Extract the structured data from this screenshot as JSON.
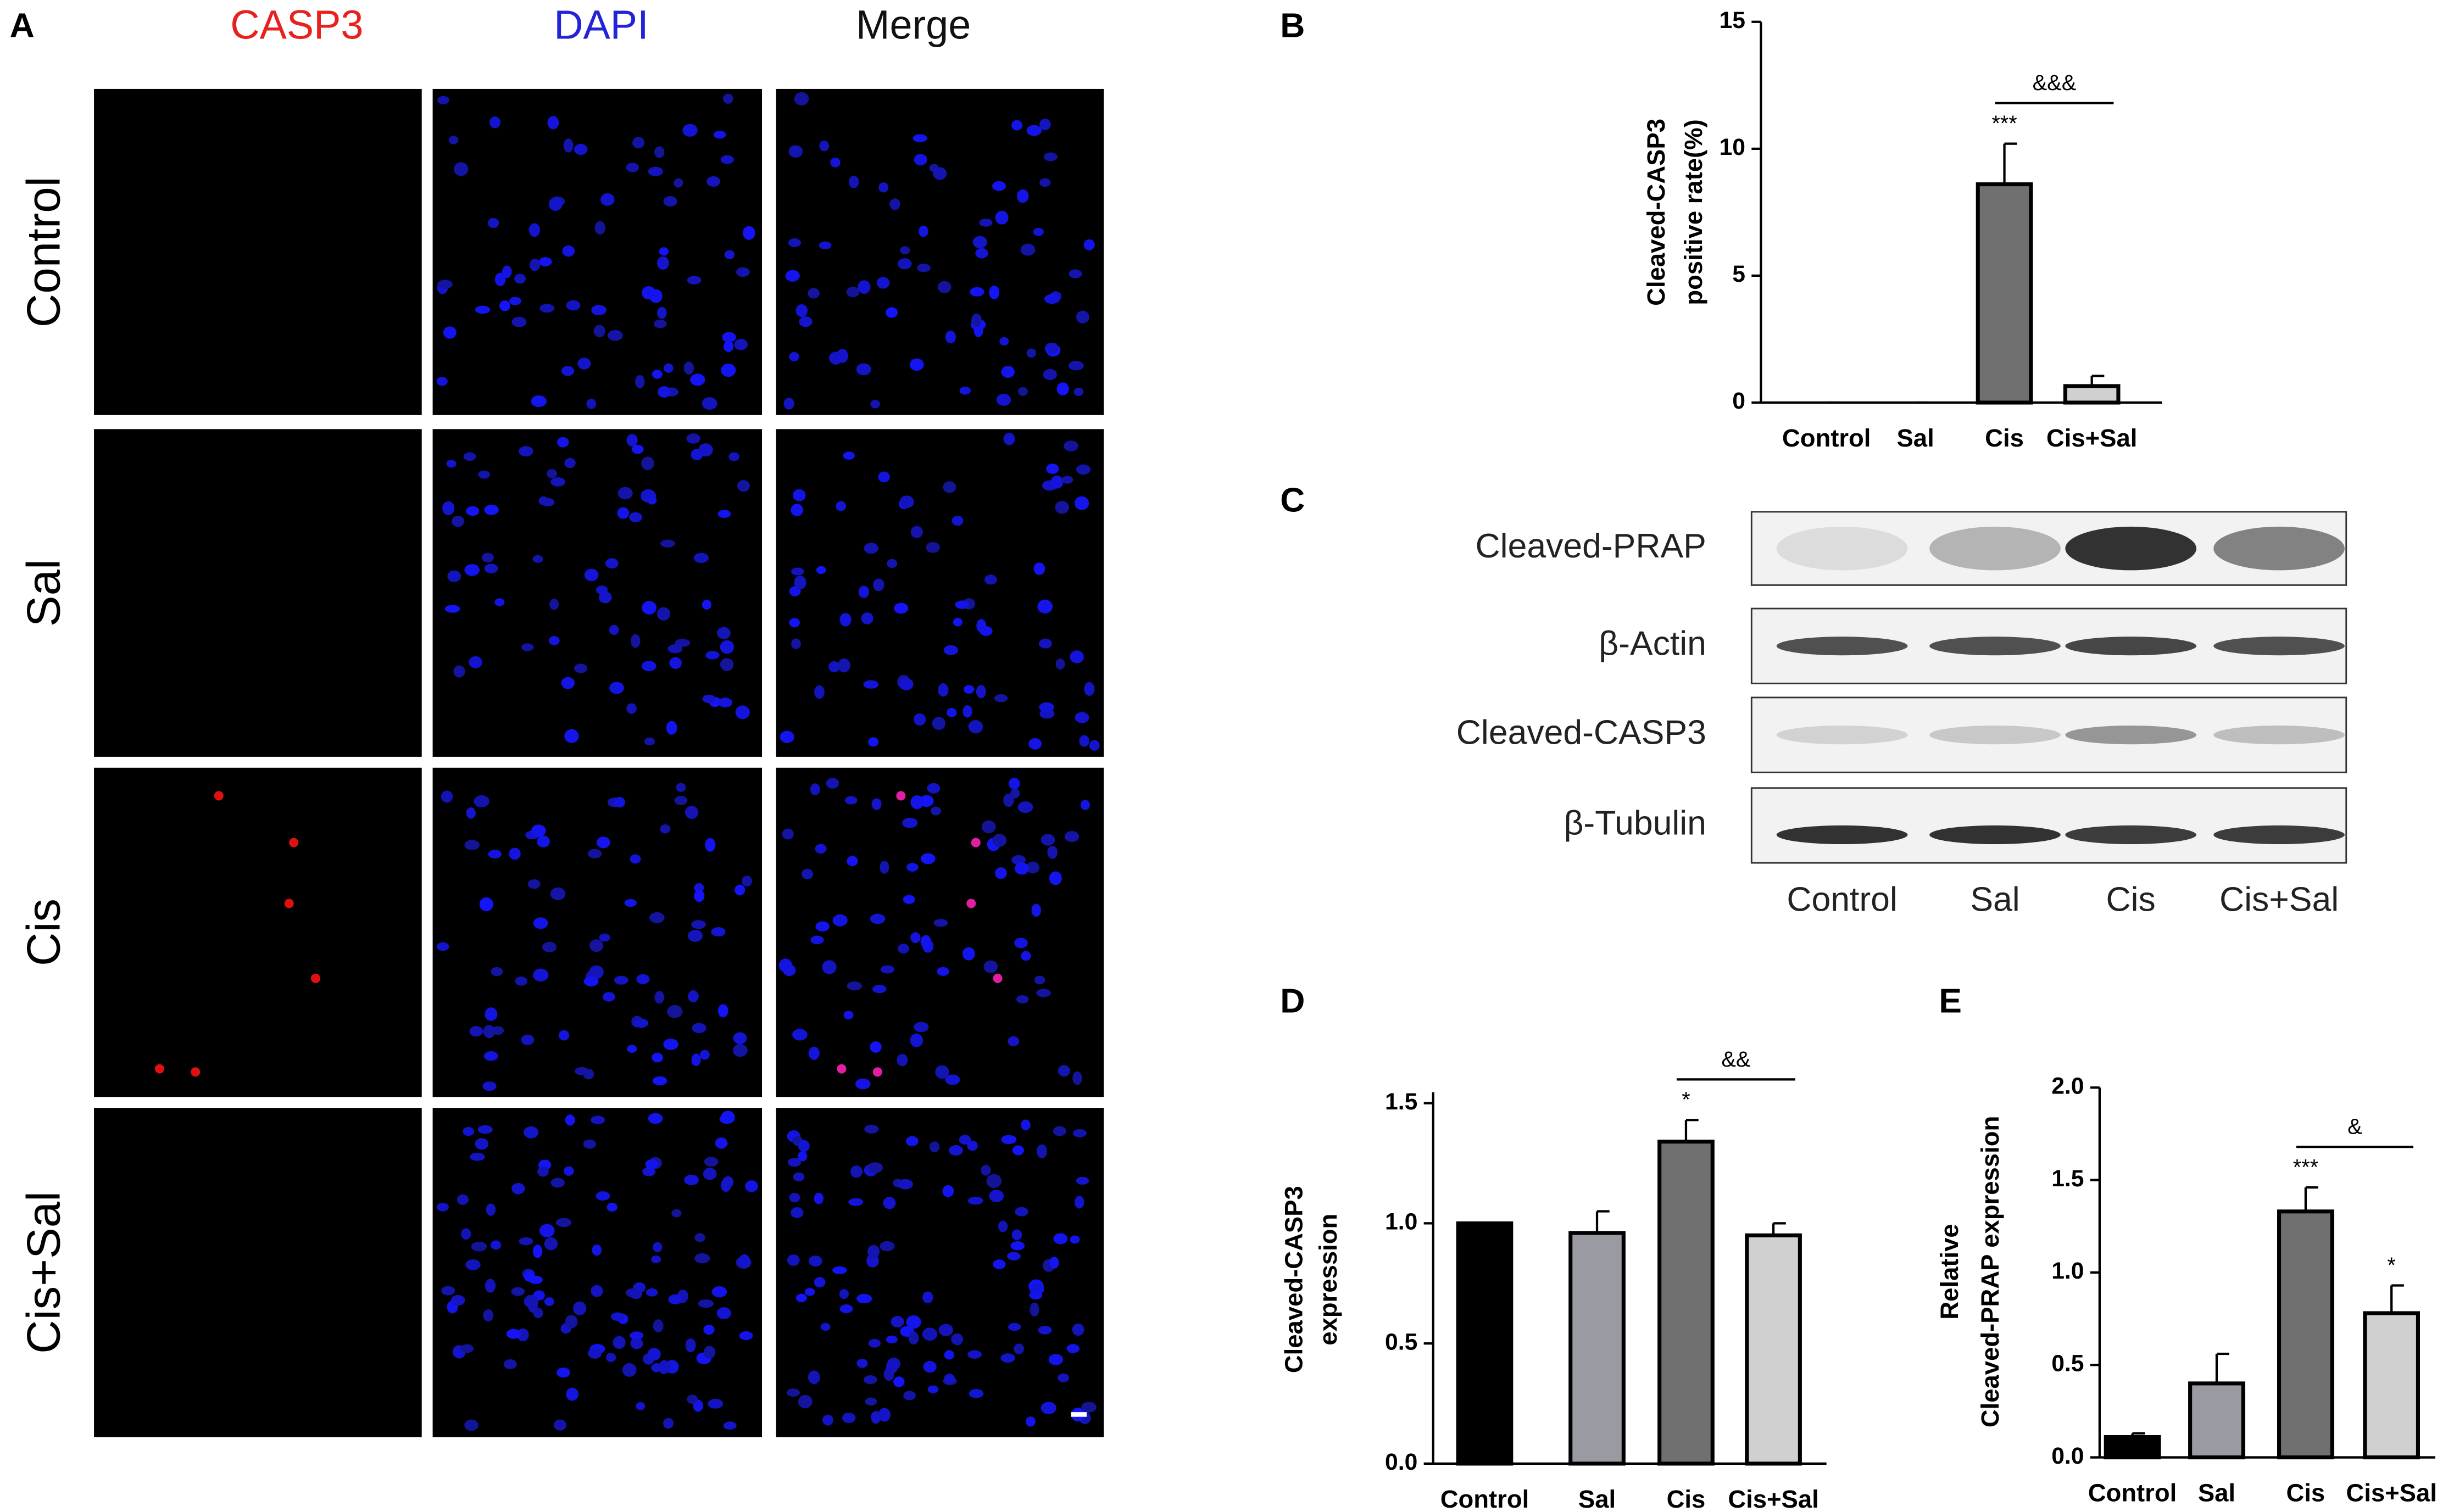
{
  "panels": {
    "A": {
      "label": "A",
      "columns": [
        "CASP3",
        "DAPI",
        "Merge"
      ],
      "rows": [
        "Control",
        "Sal",
        "Cis",
        "Cis+Sal"
      ]
    },
    "C": {
      "label": "C",
      "bands": [
        "Cleaved-PRAP",
        "β-Actin",
        "Cleaved-CASP3",
        "β-Tubulin"
      ],
      "lanes": [
        "Control",
        "Sal",
        "Cis",
        "Cis+Sal"
      ]
    }
  },
  "chart_data": [
    {
      "type": "bar",
      "panel": "B",
      "ylabel": [
        "Cleaved-CASP3",
        "positive rate(%)"
      ],
      "categories": [
        "Control",
        "Sal",
        "Cis",
        "Cis+Sal"
      ],
      "values": [
        0,
        0,
        8.6,
        0.65
      ],
      "errors": [
        0,
        0,
        1.6,
        0.4
      ],
      "colors": [
        "#000000",
        "#9a9aa2",
        "#707070",
        "#d0d0d0"
      ],
      "bar_labels": [
        null,
        null,
        "***",
        null
      ],
      "bracket_label": "&&&",
      "ylim": [
        0,
        15
      ],
      "yticks": [
        0,
        5,
        10,
        15
      ]
    },
    {
      "type": "bar",
      "panel": "D",
      "ylabel": [
        "Cleaved-CASP3",
        "expression"
      ],
      "categories": [
        "Control",
        "Sal",
        "Cis",
        "Cis+Sal"
      ],
      "values": [
        1.0,
        0.96,
        1.34,
        0.95
      ],
      "errors": [
        0,
        0.09,
        0.09,
        0.05
      ],
      "colors": [
        "#000000",
        "#9a9aa2",
        "#707070",
        "#d0d0d0"
      ],
      "bar_labels": [
        null,
        null,
        "*",
        null
      ],
      "bracket_label": "&&",
      "ylim": [
        0,
        1.5
      ],
      "yticks": [
        {
          "value": 0,
          "label": "0.0"
        },
        0.5,
        {
          "value": 1,
          "label": "1.0"
        },
        1.5
      ]
    },
    {
      "type": "bar",
      "panel": "E",
      "ylabel": [
        "Relative",
        "Cleaved-PRAP expression"
      ],
      "categories": [
        "Control",
        "Sal",
        "Cis",
        "Cis+Sal"
      ],
      "values": [
        0.11,
        0.4,
        1.33,
        0.78
      ],
      "errors": [
        0.02,
        0.16,
        0.13,
        0.15
      ],
      "colors": [
        "#000000",
        "#9a9aa2",
        "#707070",
        "#d0d0d0"
      ],
      "bar_labels": [
        null,
        null,
        "***",
        "*"
      ],
      "bracket_label": "&",
      "ylim": [
        0,
        2
      ],
      "yticks": [
        {
          "value": 0,
          "label": "0.0"
        },
        0.5,
        {
          "value": 1,
          "label": "1.0"
        },
        1.5,
        {
          "value": 2,
          "label": "2.0"
        }
      ]
    }
  ]
}
